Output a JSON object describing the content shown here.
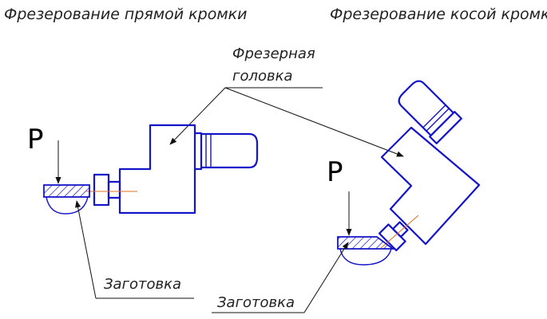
{
  "titles": {
    "straight_edge": "Фрезерование прямой кромки",
    "bevel_edge": "Фрезерование косой кромки"
  },
  "labels": {
    "milling_head_line1": "Фрезерная",
    "milling_head_line2": "головка",
    "workpiece_left": "Заготовка",
    "workpiece_right": "Заготовка",
    "force_left": "P",
    "force_right": "P"
  },
  "colors": {
    "drawing_lines": "#1414c8",
    "leader_lines": "#111111",
    "axis_lines": "#e07020"
  }
}
